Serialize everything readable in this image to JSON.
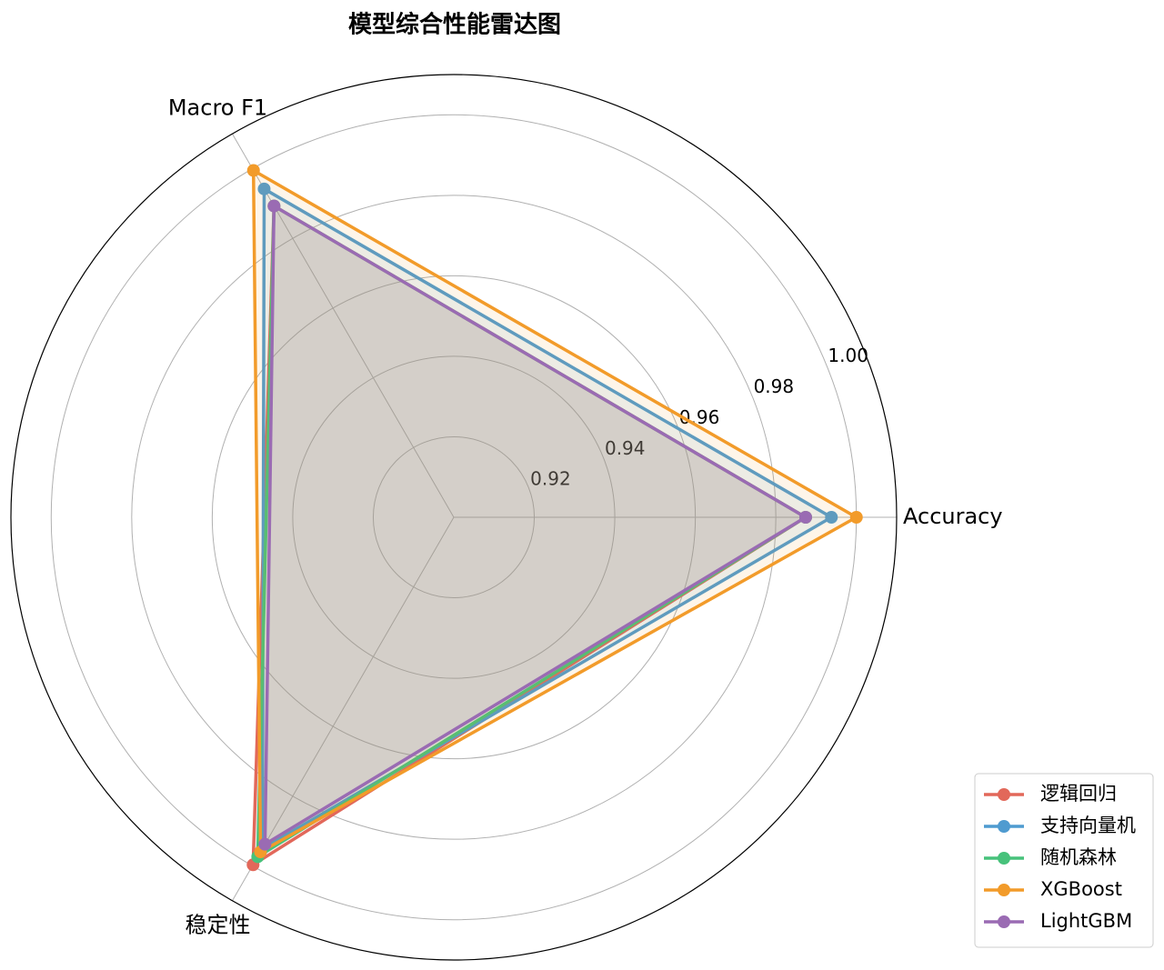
{
  "chart_data": {
    "type": "radar",
    "title": "模型综合性能雷达图",
    "categories": [
      "Accuracy",
      "Macro F1",
      "稳定性"
    ],
    "rlim": [
      0.9,
      1.01
    ],
    "rticks": [
      0.92,
      0.94,
      0.96,
      0.98,
      {
        "value": 1.0,
        "label": "1.00"
      }
    ],
    "grid": true,
    "legend": "lower right",
    "series": [
      {
        "name": "逻辑回归",
        "color": "#e2685a",
        "values": [
          0.9874,
          0.9893,
          0.9997
        ]
      },
      {
        "name": "支持向量机",
        "color": "#4f9bd0",
        "values": [
          0.9938,
          0.9942,
          0.9951
        ]
      },
      {
        "name": "随机森林",
        "color": "#47c27b",
        "values": [
          0.9874,
          0.9893,
          0.9974
        ]
      },
      {
        "name": "XGBoost",
        "color": "#f29b2a",
        "values": [
          1.0,
          0.9995,
          0.996
        ]
      },
      {
        "name": "LightGBM",
        "color": "#9a6bb3",
        "values": [
          0.9874,
          0.9893,
          0.9938
        ]
      }
    ]
  }
}
